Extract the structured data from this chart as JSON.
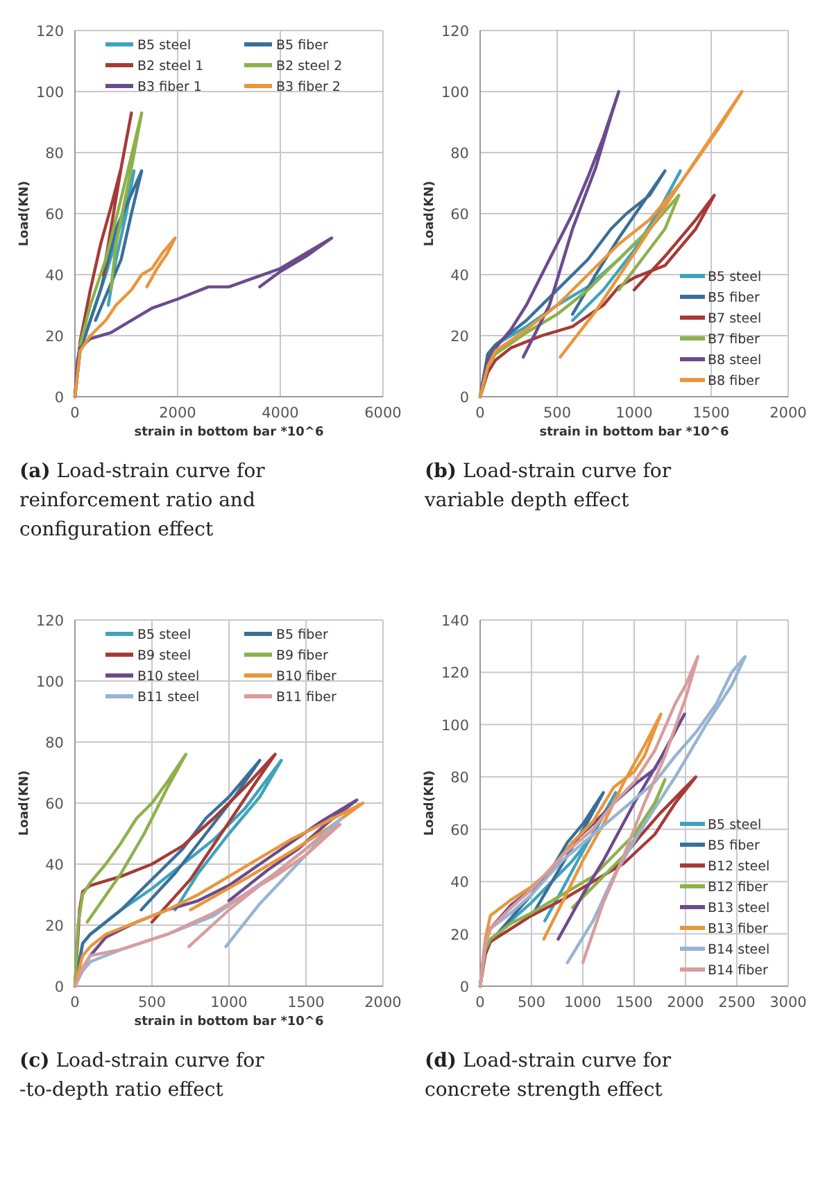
{
  "chart_data": [
    {
      "type": "line",
      "title": "(a) Load-strain curve for reinforcement ratio and configuration effect",
      "xlabel": "strain in bottom bar *10^6",
      "ylabel": "Load(KN)",
      "xlim": [
        0,
        6000
      ],
      "xticks": [
        0,
        2000,
        4000,
        6000
      ],
      "ylim": [
        0,
        120
      ],
      "yticks": [
        0,
        20,
        40,
        60,
        80,
        100,
        120
      ],
      "grid": true,
      "legend": "top",
      "series": [
        {
          "name": "B5 steel",
          "color": "#3fa3bd",
          "x": [
            0,
            100,
            300,
            600,
            900,
            1150,
            1000,
            800,
            650
          ],
          "values": [
            0,
            15,
            25,
            40,
            57,
            74,
            60,
            45,
            30
          ]
        },
        {
          "name": "B5 fiber",
          "color": "#3a6f98",
          "x": [
            0,
            100,
            300,
            500,
            800,
            1300,
            1100,
            900,
            400
          ],
          "values": [
            0,
            15,
            25,
            35,
            55,
            74,
            60,
            45,
            25
          ]
        },
        {
          "name": "B2 steel 1",
          "color": "#a63a37",
          "x": [
            0,
            100,
            300,
            500,
            700,
            900,
            1100,
            900,
            700,
            550
          ],
          "values": [
            0,
            18,
            35,
            50,
            62,
            75,
            93,
            75,
            55,
            40
          ]
        },
        {
          "name": "B2 steel 2",
          "color": "#8db14c",
          "x": [
            0,
            100,
            300,
            600,
            900,
            1300,
            1100,
            800,
            700
          ],
          "values": [
            0,
            17,
            30,
            45,
            65,
            93,
            75,
            50,
            35
          ]
        },
        {
          "name": "B3 fiber 1",
          "color": "#6b4b8e",
          "x": [
            0,
            50,
            100,
            300,
            700,
            1000,
            1500,
            2000,
            2600,
            3000,
            3500,
            4000,
            4300,
            4700,
            5000,
            4500,
            4000,
            3600
          ],
          "values": [
            0,
            12,
            16,
            19,
            21,
            24,
            29,
            32,
            36,
            36,
            39,
            42,
            45,
            49,
            52,
            46,
            41,
            36
          ]
        },
        {
          "name": "B3 fiber 2",
          "color": "#e9963c",
          "x": [
            0,
            100,
            300,
            600,
            800,
            1100,
            1300,
            1500,
            1700,
            1950,
            1800,
            1600,
            1400
          ],
          "values": [
            0,
            15,
            20,
            25,
            30,
            35,
            40,
            42,
            47,
            52,
            47,
            42,
            36
          ]
        }
      ]
    },
    {
      "type": "line",
      "title": "(b) Load-strain curve for variable depth effect",
      "xlabel": "strain in bottom bar *10^6",
      "ylabel": "Load(KN)",
      "xlim": [
        0,
        2000
      ],
      "xticks": [
        0,
        500,
        1000,
        1500,
        2000
      ],
      "ylim": [
        0,
        120
      ],
      "yticks": [
        0,
        20,
        40,
        60,
        80,
        100,
        120
      ],
      "grid": true,
      "legend": "bottom right",
      "series": [
        {
          "name": "B5 steel",
          "color": "#3fa3bd",
          "x": [
            0,
            50,
            100,
            300,
            500,
            700,
            900,
            1100,
            1300,
            1150,
            1000,
            800,
            600
          ],
          "values": [
            0,
            14,
            17,
            23,
            30,
            36,
            45,
            55,
            74,
            60,
            48,
            35,
            25
          ]
        },
        {
          "name": "B5 fiber",
          "color": "#3a6f98",
          "x": [
            0,
            50,
            100,
            300,
            500,
            700,
            850,
            950,
            1100,
            1200,
            1050,
            900,
            750,
            600
          ],
          "values": [
            0,
            14,
            17,
            25,
            35,
            45,
            55,
            60,
            66,
            74,
            63,
            52,
            40,
            27
          ]
        },
        {
          "name": "B7 steel",
          "color": "#a63a37",
          "x": [
            0,
            50,
            100,
            200,
            400,
            600,
            800,
            900,
            1000,
            1200,
            1400,
            1520,
            1400,
            1200,
            1000
          ],
          "values": [
            0,
            8,
            12,
            16,
            20,
            23,
            30,
            36,
            39,
            43,
            55,
            66,
            58,
            46,
            35
          ]
        },
        {
          "name": "B7 fiber",
          "color": "#8db14c",
          "x": [
            0,
            50,
            100,
            300,
            500,
            700,
            900,
            1100,
            1290,
            1200,
            1050,
            900
          ],
          "values": [
            0,
            10,
            14,
            21,
            27,
            35,
            45,
            55,
            66,
            55,
            45,
            35
          ]
        },
        {
          "name": "B8 steel",
          "color": "#6b4b8e",
          "x": [
            0,
            50,
            100,
            200,
            300,
            400,
            500,
            600,
            700,
            800,
            900,
            850,
            750,
            600,
            450,
            280
          ],
          "values": [
            0,
            12,
            16,
            22,
            30,
            40,
            50,
            60,
            72,
            85,
            100,
            92,
            75,
            55,
            30,
            13
          ]
        },
        {
          "name": "B8 fiber",
          "color": "#e9963c",
          "x": [
            0,
            50,
            100,
            300,
            500,
            700,
            900,
            1100,
            1300,
            1500,
            1700,
            1550,
            1300,
            1000,
            750,
            520
          ],
          "values": [
            0,
            10,
            15,
            22,
            30,
            40,
            50,
            58,
            70,
            85,
            100,
            88,
            70,
            47,
            28,
            13
          ]
        }
      ]
    },
    {
      "type": "line",
      "title": "(c) Load-strain curve for -to-depth ratio effect",
      "xlabel": "strain in bottom bar *10^6",
      "ylabel": "Load(KN)",
      "xlim": [
        0,
        2000
      ],
      "xticks": [
        0,
        500,
        1000,
        1500,
        2000
      ],
      "ylim": [
        0,
        120
      ],
      "yticks": [
        0,
        20,
        40,
        60,
        80,
        100,
        120
      ],
      "grid": true,
      "legend": "top",
      "series": [
        {
          "name": "B5 steel",
          "color": "#3fa3bd",
          "x": [
            0,
            50,
            100,
            300,
            500,
            700,
            900,
            1100,
            1340,
            1200,
            1000,
            800,
            650
          ],
          "values": [
            0,
            14,
            17,
            25,
            32,
            40,
            48,
            58,
            74,
            62,
            50,
            37,
            25
          ]
        },
        {
          "name": "B5 fiber",
          "color": "#3a6f98",
          "x": [
            0,
            50,
            100,
            300,
            500,
            700,
            850,
            1000,
            1200,
            1050,
            850,
            650,
            430
          ],
          "values": [
            0,
            14,
            17,
            25,
            35,
            45,
            55,
            62,
            74,
            63,
            50,
            37,
            25
          ]
        },
        {
          "name": "B9 steel",
          "color": "#a63a37",
          "x": [
            0,
            30,
            50,
            100,
            300,
            500,
            700,
            900,
            1100,
            1300,
            1150,
            950,
            750,
            500
          ],
          "values": [
            0,
            25,
            31,
            33,
            36,
            40,
            46,
            55,
            65,
            76,
            65,
            50,
            35,
            21
          ]
        },
        {
          "name": "B9 fiber",
          "color": "#8db14c",
          "x": [
            0,
            20,
            50,
            100,
            200,
            300,
            400,
            500,
            600,
            720,
            600,
            450,
            300,
            80
          ],
          "values": [
            0,
            20,
            30,
            34,
            40,
            47,
            55,
            60,
            67,
            76,
            65,
            50,
            37,
            21
          ]
        },
        {
          "name": "B10 steel",
          "color": "#6b4b8e",
          "x": [
            0,
            50,
            100,
            200,
            400,
            600,
            800,
            1000,
            1200,
            1400,
            1600,
            1830,
            1650,
            1450,
            1250,
            1000
          ],
          "values": [
            0,
            6,
            10,
            16,
            21,
            25,
            28,
            33,
            40,
            47,
            54,
            61,
            54,
            45,
            38,
            28
          ]
        },
        {
          "name": "B10 fiber",
          "color": "#e9963c",
          "x": [
            0,
            50,
            100,
            200,
            400,
            600,
            800,
            1000,
            1200,
            1400,
            1600,
            1870,
            1650,
            1400,
            1100,
            750
          ],
          "values": [
            0,
            10,
            13,
            17,
            21,
            25,
            30,
            36,
            42,
            48,
            53,
            60,
            52,
            44,
            35,
            25
          ]
        },
        {
          "name": "B11 steel",
          "color": "#97b4d2",
          "x": [
            0,
            50,
            100,
            300,
            600,
            900,
            1100,
            1300,
            1500,
            1730,
            1500,
            1200,
            980
          ],
          "values": [
            0,
            5,
            8,
            12,
            17,
            23,
            30,
            37,
            45,
            55,
            43,
            27,
            13
          ]
        },
        {
          "name": "B11 fiber",
          "color": "#d99c9c",
          "x": [
            0,
            50,
            100,
            300,
            600,
            900,
            1100,
            1300,
            1500,
            1720,
            1500,
            1200,
            1000,
            740
          ],
          "values": [
            0,
            6,
            10,
            12,
            17,
            24,
            30,
            36,
            43,
            53,
            45,
            33,
            25,
            13
          ]
        }
      ]
    },
    {
      "type": "line",
      "title": "(d) Load-strain curve for concrete strength effect",
      "ylabel": "Load(KN)",
      "xlim": [
        0,
        3000
      ],
      "xticks": [
        0,
        500,
        1000,
        1500,
        2000,
        2500,
        3000
      ],
      "ylim": [
        0,
        140
      ],
      "yticks": [
        0,
        20,
        40,
        60,
        80,
        100,
        120,
        140
      ],
      "grid": true,
      "legend": "bottom right",
      "series": [
        {
          "name": "B5 steel",
          "color": "#3fa3bd",
          "x": [
            0,
            50,
            100,
            300,
            500,
            700,
            900,
            1100,
            1320,
            1150,
            950,
            800,
            630
          ],
          "values": [
            0,
            14,
            17,
            25,
            32,
            40,
            48,
            58,
            74,
            62,
            48,
            37,
            25
          ]
        },
        {
          "name": "B5 fiber",
          "color": "#3a6f98",
          "x": [
            0,
            50,
            100,
            300,
            500,
            700,
            850,
            1000,
            1200,
            1050,
            850,
            700,
            520
          ],
          "values": [
            0,
            14,
            17,
            26,
            35,
            45,
            55,
            62,
            74,
            63,
            50,
            40,
            28
          ]
        },
        {
          "name": "B12 steel",
          "color": "#a63a37",
          "x": [
            0,
            50,
            100,
            300,
            500,
            800,
            1100,
            1400,
            1700,
            1900,
            2100,
            1950,
            1750,
            1550,
            1300
          ],
          "values": [
            0,
            12,
            17,
            22,
            27,
            33,
            40,
            47,
            58,
            70,
            80,
            74,
            66,
            57,
            45
          ]
        },
        {
          "name": "B12 fiber",
          "color": "#8db14c",
          "x": [
            0,
            50,
            100,
            300,
            500,
            800,
            1100,
            1300,
            1500,
            1700,
            1800,
            1650,
            1400,
            1150,
            900
          ],
          "values": [
            0,
            14,
            18,
            24,
            28,
            35,
            42,
            50,
            58,
            70,
            79,
            65,
            50,
            40,
            30
          ]
        },
        {
          "name": "B13 steel",
          "color": "#6b4b8e",
          "x": [
            0,
            50,
            100,
            300,
            500,
            700,
            900,
            1100,
            1300,
            1500,
            1700,
            1990,
            1800,
            1500,
            1200,
            1000,
            760
          ],
          "values": [
            0,
            17,
            22,
            31,
            37,
            45,
            55,
            62,
            70,
            77,
            83,
            104,
            90,
            70,
            48,
            35,
            18
          ]
        },
        {
          "name": "B13 fiber",
          "color": "#e9963c",
          "x": [
            0,
            50,
            100,
            300,
            500,
            700,
            900,
            1100,
            1300,
            1500,
            1600,
            1760,
            1600,
            1400,
            1200,
            1000,
            800,
            620
          ],
          "values": [
            0,
            18,
            27,
            33,
            38,
            45,
            55,
            63,
            76,
            82,
            88,
            104,
            92,
            78,
            62,
            48,
            32,
            18
          ]
        },
        {
          "name": "B14 steel",
          "color": "#97b4d2",
          "x": [
            0,
            50,
            100,
            300,
            500,
            800,
            1100,
            1400,
            1700,
            1900,
            2100,
            2300,
            2450,
            2580,
            2450,
            2200,
            1900,
            1600,
            1300,
            1100,
            850
          ],
          "values": [
            0,
            16,
            22,
            28,
            35,
            48,
            58,
            68,
            78,
            88,
            97,
            108,
            120,
            126,
            115,
            100,
            80,
            62,
            42,
            25,
            9
          ]
        },
        {
          "name": "B14 fiber",
          "color": "#d99c9c",
          "x": [
            0,
            50,
            100,
            300,
            500,
            800,
            1100,
            1300,
            1500,
            1700,
            1900,
            2000,
            2120,
            2000,
            1800,
            1600,
            1400,
            1200,
            1000
          ],
          "values": [
            0,
            16,
            22,
            30,
            37,
            50,
            60,
            70,
            78,
            90,
            108,
            115,
            126,
            110,
            88,
            70,
            50,
            32,
            9
          ]
        }
      ]
    }
  ]
}
